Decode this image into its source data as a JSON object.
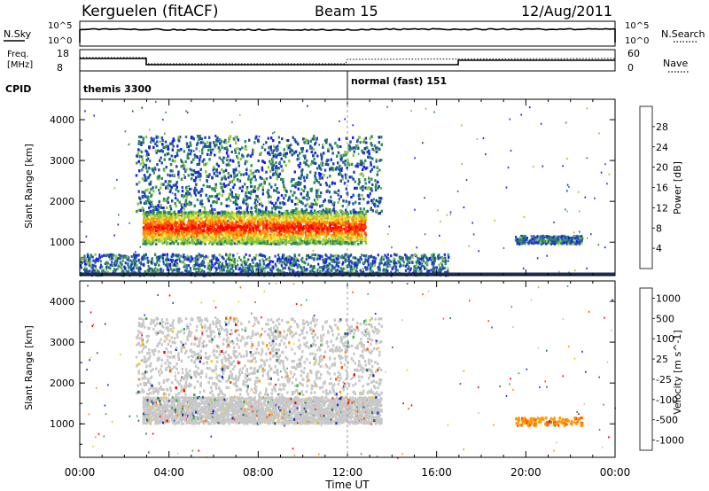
{
  "header": {
    "title": "Kerguelen (fitACF)",
    "beam": "Beam 15",
    "date": "12/Aug/2011"
  },
  "panels": {
    "nsky": {
      "label": "N.Sky",
      "right_label": "N.Search",
      "tick_hi": "10^5",
      "tick_lo": "10^0"
    },
    "freq": {
      "label": "Freq.",
      "unit": "[MHz]",
      "tick_hi": "18",
      "tick_lo": "8",
      "right_label": "Nave",
      "right_tick_hi": "60",
      "right_tick_lo": "0"
    },
    "cpid": {
      "label": "CPID",
      "modes": [
        {
          "name": "themis 3300",
          "start_hour": 0
        },
        {
          "name": "normal (fast) 151",
          "start_hour": 12
        }
      ]
    }
  },
  "chart_data": [
    {
      "type": "heatmap",
      "title": "",
      "xlabel": "",
      "ylabel": "Slant Range [km]",
      "xlim": [
        0,
        24
      ],
      "ylim": [
        180,
        4500
      ],
      "x_ticks": [
        "00:00",
        "04:00",
        "08:00",
        "12:00",
        "16:00",
        "20:00",
        "00:00"
      ],
      "y_ticks": [
        1000,
        2000,
        3000,
        4000
      ],
      "colorbar": {
        "label": "Power [dB]",
        "ticks": [
          "4",
          "8",
          "12",
          "16",
          "20",
          "24",
          "28"
        ],
        "colors": [
          "#1a1aff",
          "#1f4fa8",
          "#2e8c5a",
          "#8cc83c",
          "#f0e040",
          "#ff9a00",
          "#ff4a00",
          "#ff0000"
        ]
      },
      "regions": [
        {
          "name": "main echo band",
          "t_start": 2.8,
          "t_end": 12.8,
          "range_low": 950,
          "range_high": 1750,
          "peak_db": 30
        },
        {
          "name": "upper diffuse scatter",
          "t_start": 2.5,
          "t_end": 13.5,
          "range_low": 1700,
          "range_high": 3600,
          "peak_db": 12
        },
        {
          "name": "near-range scatter",
          "t_start": 0.0,
          "t_end": 16.5,
          "range_low": 180,
          "range_high": 700,
          "peak_db": 8
        },
        {
          "name": "late echo",
          "t_start": 19.5,
          "t_end": 22.5,
          "range_low": 950,
          "range_high": 1150,
          "peak_db": 8
        }
      ]
    },
    {
      "type": "heatmap",
      "title": "",
      "xlabel": "Time UT",
      "ylabel": "Slant Range [km]",
      "xlim": [
        0,
        24
      ],
      "ylim": [
        180,
        4500
      ],
      "x_ticks": [
        "00:00",
        "04:00",
        "08:00",
        "12:00",
        "16:00",
        "20:00",
        "00:00"
      ],
      "y_ticks": [
        1000,
        2000,
        3000,
        4000
      ],
      "colorbar": {
        "label": "Velocity [m s^-1]",
        "ticks": [
          "1000",
          "500",
          "100",
          "25",
          "-25",
          "-100",
          "-500",
          "-1000"
        ],
        "colors": [
          "#1a2fd0",
          "#2e6f5a",
          "#39b54a",
          "#c8c8c8",
          "#f5d020",
          "#ff9a00",
          "#ff5a00",
          "#ff0000"
        ]
      },
      "regions": [
        {
          "name": "ground scatter band",
          "t_start": 2.8,
          "t_end": 13.5,
          "range_low": 1000,
          "range_high": 1650,
          "velocity": 0
        },
        {
          "name": "upper scatter",
          "t_start": 2.5,
          "t_end": 13.5,
          "range_low": 1700,
          "range_high": 3600,
          "velocity": 0
        },
        {
          "name": "late echo",
          "t_start": 19.5,
          "t_end": 22.5,
          "range_low": 950,
          "range_high": 1150,
          "velocity": -200
        }
      ]
    }
  ]
}
